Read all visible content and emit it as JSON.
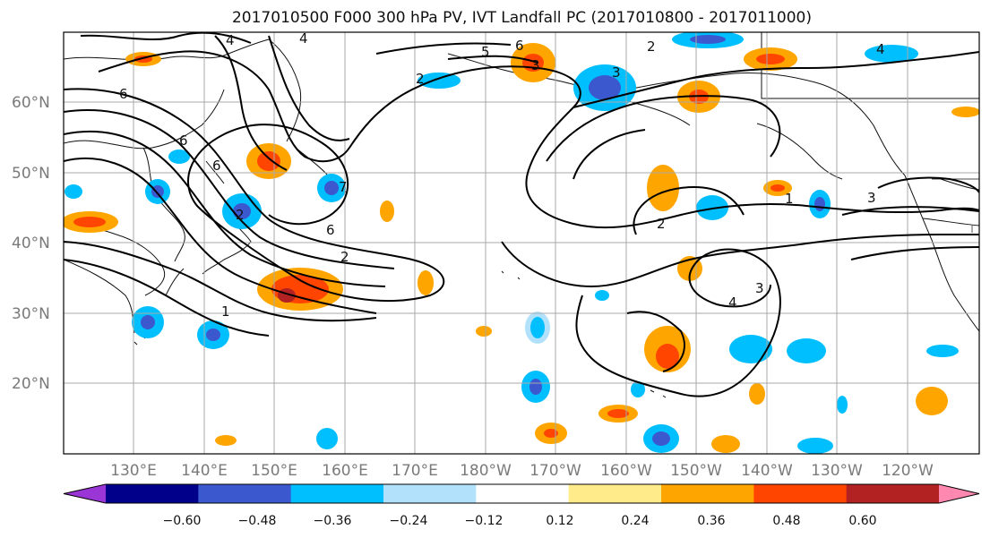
{
  "title": "2017010500 F000 300 hPa PV, IVT Landfall PC (2017010800 - 2017011000)",
  "latitude_labels": [
    "60°N",
    "50°N",
    "40°N",
    "30°N",
    "20°N"
  ],
  "longitude_labels": [
    "130°E",
    "140°E",
    "150°E",
    "160°E",
    "170°E",
    "180°W",
    "170°W",
    "160°W",
    "150°W",
    "140°W",
    "130°W",
    "120°W"
  ],
  "colorbar": {
    "tick_labels": [
      "−0.60",
      "−0.48",
      "−0.36",
      "−0.24",
      "−0.12",
      "0.12",
      "0.24",
      "0.36",
      "0.48",
      "0.60"
    ],
    "bins": [
      {
        "color": "#9a35d6"
      },
      {
        "color": "#00008b"
      },
      {
        "color": "#3b58cf"
      },
      {
        "color": "#00bfff"
      },
      {
        "color": "#b2e2fb"
      },
      {
        "color": "#ffffff"
      },
      {
        "color": "#ffeb8a"
      },
      {
        "color": "#ffa500"
      },
      {
        "color": "#ff4500"
      },
      {
        "color": "#b22222"
      },
      {
        "color": "#ff88b0"
      }
    ]
  },
  "contour_labels": [
    "4",
    "4",
    "5",
    "6",
    "6",
    "2",
    "2",
    "2",
    "3",
    "3",
    "6",
    "6",
    "7",
    "6",
    "2",
    "1",
    "2",
    "4",
    "3",
    "1",
    "3",
    "4"
  ]
}
